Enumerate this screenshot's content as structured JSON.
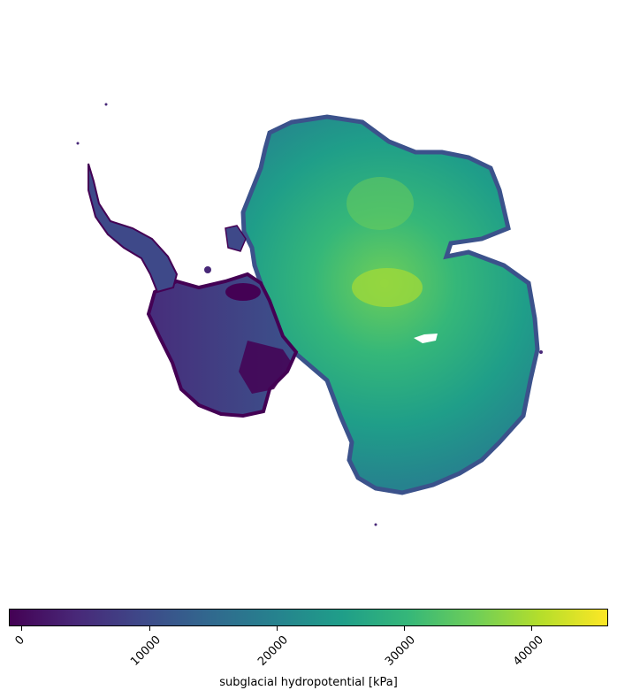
{
  "map": {
    "region": "Antarctica",
    "variable": "subglacial hydropotential",
    "colormap": "viridis"
  },
  "colorbar": {
    "label": "subglacial hydropotential [kPa]",
    "min": -1000,
    "max": 46000,
    "ticks": [
      {
        "value": 0,
        "label": "0"
      },
      {
        "value": 10000,
        "label": "10000"
      },
      {
        "value": 20000,
        "label": "20000"
      },
      {
        "value": 30000,
        "label": "30000"
      },
      {
        "value": 40000,
        "label": "40000"
      }
    ],
    "stops": [
      "#440154",
      "#482878",
      "#3e4989",
      "#31688e",
      "#26828e",
      "#1f9e89",
      "#35b779",
      "#6ece58",
      "#b5de2b",
      "#fde725"
    ]
  }
}
